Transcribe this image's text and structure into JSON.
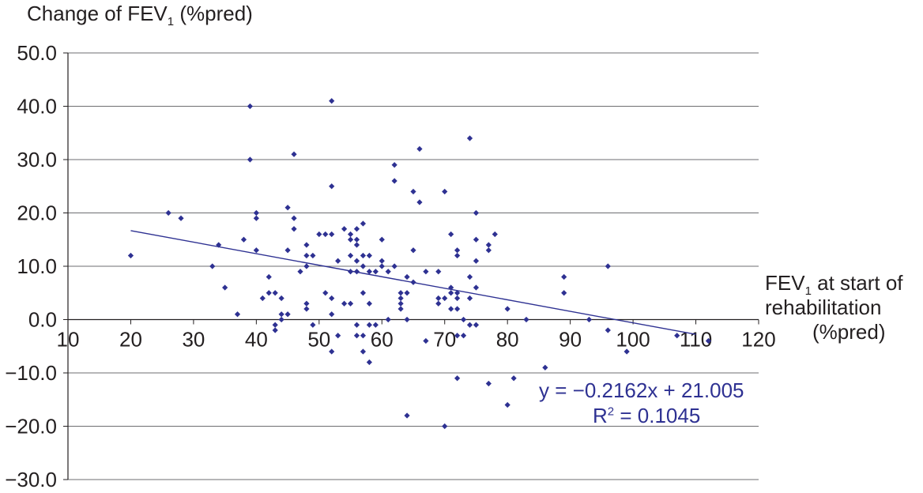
{
  "chart_data": {
    "type": "scatter",
    "ylabel_main": "Change of FEV",
    "ylabel_sub": "1",
    "ylabel_tail": " (%pred)",
    "xlabel_line1_main": "FEV",
    "xlabel_line1_sub": "1",
    "xlabel_line1_tail": " at start of",
    "xlabel_line2": "rehabilitation",
    "xlabel_line3": "(%pred)",
    "xlim": [
      10,
      120
    ],
    "ylim": [
      -30,
      50
    ],
    "x_ticks": [
      "10",
      "20",
      "30",
      "40",
      "50",
      "60",
      "70",
      "80",
      "90",
      "100",
      "110",
      "120"
    ],
    "y_ticks": [
      "50.0",
      "40.0",
      "30.0",
      "20.0",
      "10.0",
      "0.0",
      "−10.0",
      "−20.0",
      "−30.0"
    ],
    "y_tick_values": [
      50,
      40,
      30,
      20,
      10,
      0,
      -10,
      -20,
      -30
    ],
    "x_tick_values": [
      10,
      20,
      30,
      40,
      50,
      60,
      70,
      80,
      90,
      100,
      110,
      120
    ],
    "grid": "horizontal",
    "marker_color": "#2e3192",
    "trendline": {
      "slope": -0.2162,
      "intercept": 21.005,
      "x_range": [
        20,
        110
      ],
      "color": "#2e3192"
    },
    "equation": "y = −0.2162x + 21.005",
    "r2_main": "R",
    "r2_sup": "2",
    "r2_tail": " = 0.1045",
    "points": [
      [
        20,
        12
      ],
      [
        26,
        20
      ],
      [
        28,
        19
      ],
      [
        33,
        10
      ],
      [
        34,
        14
      ],
      [
        35,
        6
      ],
      [
        37,
        1
      ],
      [
        38,
        15
      ],
      [
        39,
        40
      ],
      [
        39,
        30
      ],
      [
        40,
        20
      ],
      [
        40,
        19
      ],
      [
        40,
        13
      ],
      [
        41,
        4
      ],
      [
        42,
        8
      ],
      [
        42,
        5
      ],
      [
        43,
        5
      ],
      [
        43,
        -1
      ],
      [
        43,
        -2
      ],
      [
        44,
        4
      ],
      [
        44,
        1
      ],
      [
        44,
        0
      ],
      [
        45,
        21
      ],
      [
        45,
        13
      ],
      [
        45,
        1
      ],
      [
        46,
        31
      ],
      [
        46,
        19
      ],
      [
        46,
        17
      ],
      [
        47,
        9
      ],
      [
        48,
        14
      ],
      [
        48,
        12
      ],
      [
        48,
        10
      ],
      [
        48,
        3
      ],
      [
        48,
        2
      ],
      [
        49,
        12
      ],
      [
        49,
        -1
      ],
      [
        50,
        16
      ],
      [
        51,
        16
      ],
      [
        51,
        5
      ],
      [
        52,
        41
      ],
      [
        52,
        25
      ],
      [
        52,
        16
      ],
      [
        52,
        4
      ],
      [
        52,
        1
      ],
      [
        52,
        -6
      ],
      [
        53,
        11
      ],
      [
        53,
        -3
      ],
      [
        54,
        17
      ],
      [
        54,
        3
      ],
      [
        55,
        16
      ],
      [
        55,
        15
      ],
      [
        55,
        12
      ],
      [
        55,
        9
      ],
      [
        55,
        3
      ],
      [
        56,
        17
      ],
      [
        56,
        15
      ],
      [
        56,
        14
      ],
      [
        56,
        11
      ],
      [
        56,
        9
      ],
      [
        56,
        -1
      ],
      [
        56,
        -3
      ],
      [
        57,
        18
      ],
      [
        57,
        12
      ],
      [
        57,
        10
      ],
      [
        57,
        5
      ],
      [
        57,
        -3
      ],
      [
        57,
        -6
      ],
      [
        58,
        12
      ],
      [
        58,
        9
      ],
      [
        58,
        3
      ],
      [
        58,
        -1
      ],
      [
        58,
        -8
      ],
      [
        59,
        9
      ],
      [
        59,
        -1
      ],
      [
        60,
        15
      ],
      [
        60,
        11
      ],
      [
        60,
        10
      ],
      [
        61,
        9
      ],
      [
        61,
        0
      ],
      [
        62,
        29
      ],
      [
        62,
        26
      ],
      [
        62,
        10
      ],
      [
        63,
        5
      ],
      [
        63,
        4
      ],
      [
        63,
        3
      ],
      [
        63,
        2
      ],
      [
        64,
        8
      ],
      [
        64,
        5
      ],
      [
        64,
        0
      ],
      [
        64,
        -18
      ],
      [
        65,
        24
      ],
      [
        65,
        13
      ],
      [
        65,
        7
      ],
      [
        66,
        32
      ],
      [
        66,
        22
      ],
      [
        67,
        9
      ],
      [
        67,
        -4
      ],
      [
        69,
        9
      ],
      [
        69,
        4
      ],
      [
        69,
        3
      ],
      [
        70,
        24
      ],
      [
        70,
        4
      ],
      [
        70,
        -20
      ],
      [
        71,
        16
      ],
      [
        71,
        6
      ],
      [
        71,
        5
      ],
      [
        71,
        2
      ],
      [
        72,
        13
      ],
      [
        72,
        12
      ],
      [
        72,
        5
      ],
      [
        72,
        4
      ],
      [
        72,
        2
      ],
      [
        72,
        -3
      ],
      [
        72,
        -11
      ],
      [
        73,
        0
      ],
      [
        73,
        -3
      ],
      [
        74,
        34
      ],
      [
        74,
        8
      ],
      [
        74,
        4
      ],
      [
        74,
        -1
      ],
      [
        75,
        20
      ],
      [
        75,
        15
      ],
      [
        75,
        11
      ],
      [
        75,
        6
      ],
      [
        75,
        -1
      ],
      [
        77,
        14
      ],
      [
        77,
        13
      ],
      [
        77,
        -12
      ],
      [
        78,
        16
      ],
      [
        80,
        2
      ],
      [
        80,
        -16
      ],
      [
        81,
        -11
      ],
      [
        83,
        0
      ],
      [
        86,
        -9
      ],
      [
        89,
        8
      ],
      [
        89,
        5
      ],
      [
        93,
        0
      ],
      [
        96,
        10
      ],
      [
        96,
        -2
      ],
      [
        99,
        -6
      ],
      [
        107,
        -3
      ],
      [
        112,
        -4
      ]
    ]
  }
}
